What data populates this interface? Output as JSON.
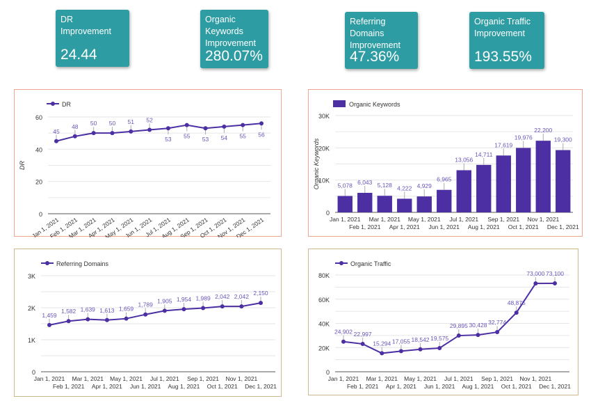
{
  "cards": [
    {
      "title": "DR Improvement",
      "value": "24.44"
    },
    {
      "title": "Organic Keywords Improvement",
      "value": "280.07%"
    },
    {
      "title": "Referring Domains Improvement",
      "value": "47.36%"
    },
    {
      "title": "Organic Traffic Improvement",
      "value": "193.55%"
    }
  ],
  "colors": {
    "card": "#2e9da3",
    "series": "#4b2fa3",
    "label": "#6a55b8"
  },
  "chart_data": [
    {
      "type": "line",
      "legend": "DR",
      "ylabel": "DR",
      "ylim": [
        0,
        60
      ],
      "yticks": [
        "0",
        "20",
        "40",
        "60"
      ],
      "categories": [
        "Jan 1, 2021",
        "Feb 1, 2021",
        "Mar 1, 2021",
        "Apr 1, 2021",
        "May 1, 2021",
        "Jun 1, 2021",
        "Jul 1, 2021",
        "Aug 1, 2021",
        "Sep 1, 2021",
        "Oct 1, 2021",
        "Nov 1, 2021",
        "Dec 1, 2021"
      ],
      "values": [
        45,
        48,
        50,
        50,
        51,
        52,
        53,
        55,
        53,
        54,
        55,
        56
      ],
      "labels": [
        "45",
        "48",
        "50",
        "50",
        "51",
        "52",
        "53",
        "55",
        "53",
        "54",
        "55",
        "56"
      ],
      "grid": true,
      "legend_position": "top-left",
      "x_labels_rotated": true
    },
    {
      "type": "bar",
      "legend": "Organic Keywords",
      "ylabel": "Organic Keywords",
      "ylim": [
        0,
        30000
      ],
      "yticks": [
        "0",
        "10K",
        "20K",
        "30K"
      ],
      "categories": [
        "Jan 1, 2021",
        "Feb 1, 2021",
        "Mar 1, 2021",
        "Apr 1, 2021",
        "May 1, 2021",
        "Jun 1, 2021",
        "Jul 1, 2021",
        "Aug 1, 2021",
        "Sep 1, 2021",
        "Oct 1, 2021",
        "Nov 1, 2021",
        "Dec 1, 2021"
      ],
      "values": [
        5078,
        6043,
        5128,
        4222,
        4929,
        6965,
        13056,
        14711,
        17619,
        19976,
        22200,
        19300
      ],
      "labels": [
        "5,078",
        "6,043",
        "5,128",
        "4,222",
        "4,929",
        "6,965",
        "13,056",
        "14,711",
        "17,619",
        "19,976",
        "22,200",
        "19,300"
      ],
      "grid": true,
      "legend_position": "top-left"
    },
    {
      "type": "line",
      "legend": "Referring Domains",
      "ylabel": "",
      "ylim": [
        0,
        3000
      ],
      "yticks": [
        "0",
        "1K",
        "2K",
        "3K"
      ],
      "categories": [
        "Jan 1, 2021",
        "Feb 1, 2021",
        "Mar 1, 2021",
        "Apr 1, 2021",
        "May 1, 2021",
        "Jun 1, 2021",
        "Jul 1, 2021",
        "Aug 1, 2021",
        "Sep 1, 2021",
        "Oct 1, 2021",
        "Nov 1, 2021",
        "Dec 1, 2021"
      ],
      "values": [
        1459,
        1582,
        1639,
        1613,
        1659,
        1789,
        1905,
        1954,
        1989,
        2042,
        2042,
        2150
      ],
      "labels": [
        "1,459",
        "1,582",
        "1,639",
        "1,613",
        "1,659",
        "1,789",
        "1,905",
        "1,954",
        "1,989",
        "2,042",
        "2,042",
        "2,150"
      ],
      "grid": true,
      "legend_position": "top-left"
    },
    {
      "type": "line",
      "legend": "Organic Traffic",
      "ylabel": "",
      "ylim": [
        0,
        80000
      ],
      "yticks": [
        "0",
        "20K",
        "40K",
        "60K",
        "80K"
      ],
      "categories": [
        "Jan 1, 2021",
        "Feb 1, 2021",
        "Mar 1, 2021",
        "Apr 1, 2021",
        "May 1, 2021",
        "Jun 1, 2021",
        "Jul 1, 2021",
        "Aug 1, 2021",
        "Sep 1, 2021",
        "Oct 1, 2021",
        "Nov 1, 2021",
        "Dec 1, 2021"
      ],
      "values": [
        24902,
        22997,
        15294,
        17055,
        18542,
        19575,
        29895,
        30428,
        32774,
        48875,
        73000,
        73100
      ],
      "labels": [
        "24,902",
        "22,997",
        "15,294",
        "17,055",
        "18,542",
        "19,575",
        "29,895",
        "30,428",
        "32,774",
        "48,875",
        "73,000",
        "73,100"
      ],
      "grid": true,
      "legend_position": "top-left"
    }
  ]
}
